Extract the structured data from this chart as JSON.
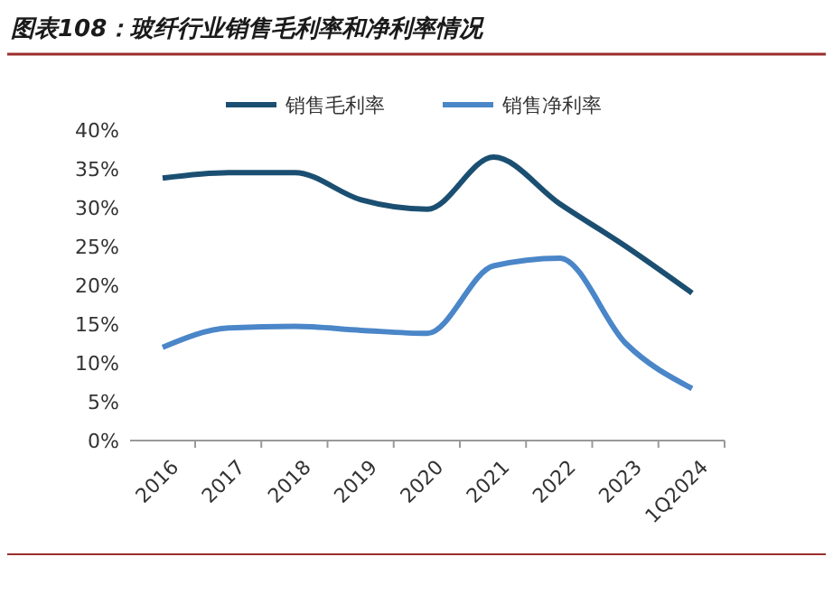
{
  "chart_data": {
    "type": "line",
    "title": "图表108：玻纤行业销售毛利率和净利率情况",
    "categories": [
      "2016",
      "2017",
      "2018",
      "2019",
      "2020",
      "2021",
      "2022",
      "2023",
      "1Q2024"
    ],
    "series": [
      {
        "name": "销售毛利率",
        "color": "#1b4f72",
        "values": [
          33.8,
          34.5,
          34.5,
          31,
          29.8,
          36.5,
          30.5,
          25,
          19
        ]
      },
      {
        "name": "销售净利率",
        "color": "#4a86c8",
        "values": [
          12,
          14.5,
          14.7,
          14.2,
          13.8,
          22.5,
          23.5,
          12.5,
          6.7
        ]
      }
    ],
    "ylim": [
      0,
      40
    ],
    "yticks": [
      {
        "value": 0,
        "label": "0%"
      },
      {
        "value": 5,
        "label": "5%"
      },
      {
        "value": 10,
        "label": "10%"
      },
      {
        "value": 15,
        "label": "15%"
      },
      {
        "value": 20,
        "label": "20%"
      },
      {
        "value": 25,
        "label": "25%"
      },
      {
        "value": 30,
        "label": "30%"
      },
      {
        "value": 35,
        "label": "35%"
      },
      {
        "value": 40,
        "label": "40%"
      }
    ],
    "grid": false,
    "legend": "top",
    "marker": "none",
    "line_style": "solid"
  }
}
